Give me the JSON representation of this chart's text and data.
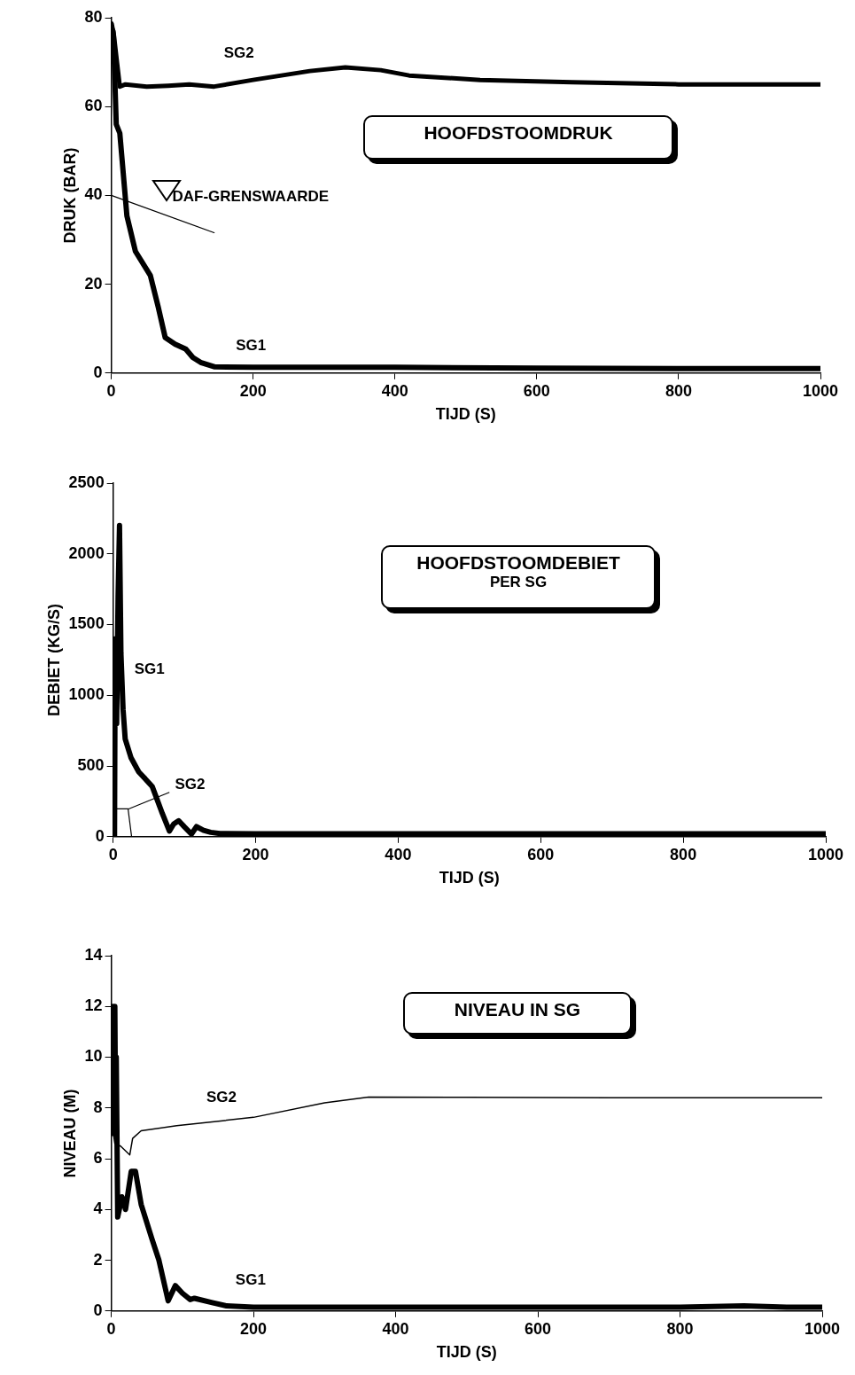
{
  "chart_data": [
    {
      "type": "line",
      "title": "HOOFDSTOOMDRUK",
      "xlabel": "TIJD (S)",
      "ylabel": "DRUK (BAR)",
      "xlim": [
        0,
        1000
      ],
      "xticks": [
        0,
        200,
        400,
        600,
        800,
        1000
      ],
      "ylim": [
        0,
        80
      ],
      "yticks": [
        0,
        20,
        40,
        60,
        80
      ],
      "marker": "none",
      "line_style": "solid",
      "series": [
        {
          "name": "SG1",
          "color": "#000000",
          "x": [
            0,
            3,
            7,
            12,
            22,
            34,
            55,
            66,
            76,
            90,
            105,
            115,
            126,
            146,
            200,
            300,
            400,
            600,
            800,
            1000
          ],
          "values": [
            78.6,
            76,
            56,
            54,
            35.4,
            27.4,
            22,
            15,
            8,
            6.5,
            5.4,
            3.5,
            2.4,
            1.4,
            1.3,
            1.3,
            1.3,
            1.1,
            1.0,
            1.0
          ]
        },
        {
          "name": "SG2",
          "color": "#000000",
          "x": [
            0,
            3,
            8,
            12,
            20,
            50,
            80,
            110,
            145,
            200,
            280,
            330,
            380,
            420,
            520,
            650,
            800,
            1000
          ],
          "values": [
            78,
            77,
            70,
            64.5,
            65,
            64.5,
            64.7,
            65,
            64.5,
            66,
            68,
            68.8,
            68.2,
            67,
            66,
            65.5,
            65,
            65
          ]
        },
        {
          "name": "DAF-GRENSWAARDE",
          "color": "#000000",
          "x": [
            0,
            145
          ],
          "values": [
            40,
            31.6
          ]
        }
      ]
    },
    {
      "type": "line",
      "title": "HOOFDSTOOMDEBIET",
      "subtitle": "PER SG",
      "xlabel": "TIJD (S)",
      "ylabel": "DEBIET (KG/S)",
      "xlim": [
        0,
        1000
      ],
      "xticks": [
        0,
        200,
        400,
        600,
        800,
        1000
      ],
      "ylim": [
        0,
        2500
      ],
      "yticks": [
        0,
        500,
        1000,
        1500,
        2000,
        2500
      ],
      "marker": "none",
      "line_style": "solid",
      "series": [
        {
          "name": "SG1",
          "color": "#000000",
          "x": [
            0,
            2,
            3,
            5,
            7,
            9,
            11,
            14,
            17,
            25,
            36,
            45,
            55,
            62,
            69,
            79,
            85,
            92,
            100,
            110,
            117,
            127,
            137,
            150,
            200,
            400,
            600,
            800,
            1000
          ],
          "values": [
            0,
            0,
            1400,
            800,
            1700,
            2200,
            1300,
            900,
            690,
            560,
            458,
            410,
            354,
            260,
            165,
            40,
            90,
            113,
            70,
            19,
            71,
            45,
            31,
            22,
            20,
            20,
            20,
            20,
            20
          ]
        },
        {
          "name": "SG2",
          "color": "#000000",
          "x": [
            0,
            1,
            21,
            26
          ],
          "values": [
            0,
            197,
            197,
            0
          ]
        }
      ]
    },
    {
      "type": "line",
      "title": "NIVEAU IN SG",
      "xlabel": "TIJD (S)",
      "ylabel": "NIVEAU (M)",
      "xlim": [
        0,
        1000
      ],
      "xticks": [
        0,
        200,
        400,
        600,
        800,
        1000
      ],
      "ylim": [
        0,
        14
      ],
      "yticks": [
        0,
        2,
        4,
        6,
        8,
        10,
        12,
        14
      ],
      "marker": "none",
      "line_style": "solid",
      "series": [
        {
          "name": "SG1",
          "color": "#000000",
          "x": [
            0,
            1,
            2,
            3,
            4,
            5,
            6,
            7,
            9,
            15,
            20,
            28,
            34,
            42,
            57,
            67,
            80,
            90,
            100,
            111,
            117,
            142,
            162,
            200,
            400,
            600,
            800,
            890,
            950,
            1000
          ],
          "values": [
            7.2,
            7.0,
            12,
            7,
            12,
            12,
            7.5,
            10,
            3.7,
            4.5,
            4.0,
            5.5,
            5.5,
            4.2,
            2.85,
            2.0,
            0.4,
            1.0,
            0.7,
            0.45,
            0.5,
            0.33,
            0.2,
            0.15,
            0.15,
            0.15,
            0.15,
            0.2,
            0.15,
            0.15
          ]
        },
        {
          "name": "SG2",
          "color": "#000000",
          "x": [
            0,
            5,
            13,
            26,
            30,
            42,
            92,
            200,
            300,
            362,
            500,
            700,
            1000
          ],
          "values": [
            7.5,
            6.6,
            6.5,
            6.15,
            6.8,
            7.1,
            7.3,
            7.63,
            8.2,
            8.43,
            8.42,
            8.4,
            8.4
          ]
        }
      ]
    }
  ]
}
